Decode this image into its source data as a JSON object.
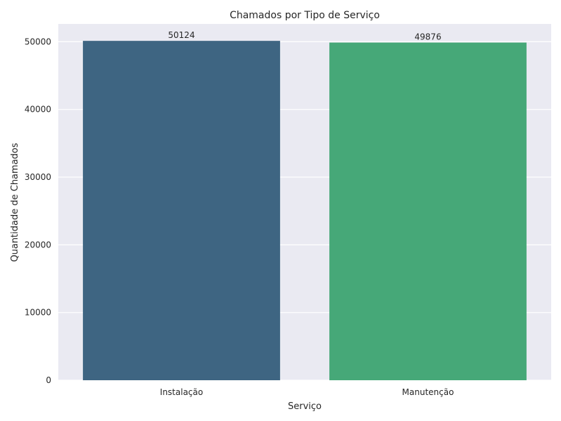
{
  "chart_data": {
    "type": "bar",
    "title": "Chamados por Tipo de Serviço",
    "xlabel": "Serviço",
    "ylabel": "Quantidade de Chamados",
    "categories": [
      "Instalação",
      "Manutenção"
    ],
    "values": [
      50124,
      49876
    ],
    "data_labels": [
      "50124",
      "49876"
    ],
    "ylim": [
      0,
      52631
    ],
    "yticks": [
      0,
      10000,
      20000,
      30000,
      40000,
      50000
    ],
    "ytick_labels": [
      "0",
      "10000",
      "20000",
      "30000",
      "40000",
      "50000"
    ],
    "grid": true,
    "legend": "none",
    "colors": {
      "background": "#eaeaf2",
      "grid": "#ffffff",
      "bars": [
        "#3e6582",
        "#46a878"
      ]
    }
  }
}
